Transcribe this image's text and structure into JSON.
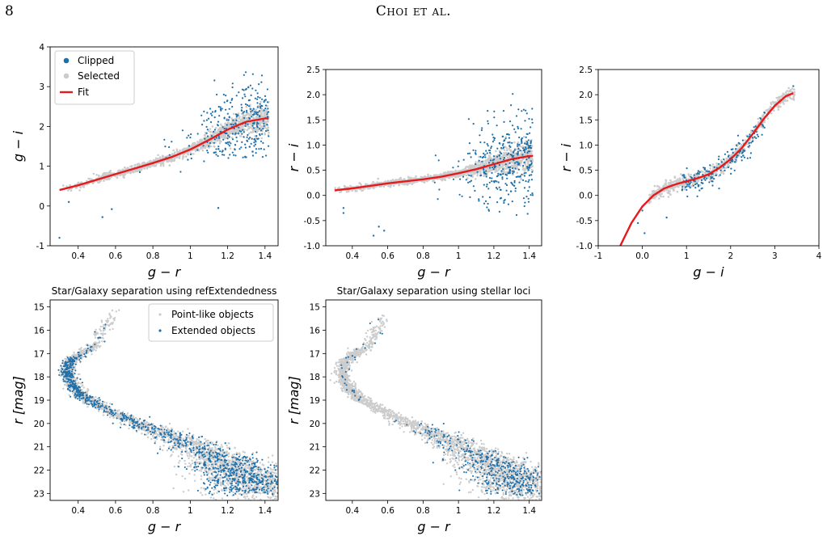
{
  "header": {
    "page_number": "8",
    "running_head": "Choi et al."
  },
  "colors": {
    "clipped": "#1f6fa8",
    "selected": "#cccccc",
    "fit": "#e41a1c"
  },
  "chart_data": [
    {
      "type": "scatter",
      "xlabel": "g − r",
      "ylabel": "g − i",
      "xlim": [
        0.25,
        1.47
      ],
      "ylim": [
        -1,
        4
      ],
      "xticks": [
        0.4,
        0.6,
        0.8,
        1.0,
        1.2,
        1.4
      ],
      "yticks": [
        -1,
        0,
        1,
        2,
        3,
        4
      ],
      "legend": {
        "placement": "top-left",
        "entries": [
          "Clipped",
          "Selected",
          "Fit"
        ]
      },
      "fit": {
        "x": [
          0.3,
          0.4,
          0.5,
          0.6,
          0.7,
          0.8,
          0.9,
          1.0,
          1.1,
          1.2,
          1.3,
          1.4,
          1.42
        ],
        "y": [
          0.4,
          0.52,
          0.66,
          0.8,
          0.94,
          1.08,
          1.23,
          1.42,
          1.66,
          1.92,
          2.12,
          2.2,
          2.2
        ]
      },
      "clipped_region": {
        "x_range": [
          1.05,
          1.42
        ],
        "y_range": [
          1.2,
          3.4
        ]
      },
      "outliers": [
        [
          0.3,
          -0.8
        ],
        [
          0.35,
          0.1
        ],
        [
          0.53,
          -0.28
        ],
        [
          0.58,
          -0.08
        ],
        [
          0.73,
          0.85
        ],
        [
          1.15,
          -0.05
        ]
      ]
    },
    {
      "type": "scatter",
      "xlabel": "g − r",
      "ylabel": "r − i",
      "xlim": [
        0.25,
        1.47
      ],
      "ylim": [
        -1.0,
        2.5
      ],
      "xticks": [
        0.4,
        0.6,
        0.8,
        1.0,
        1.2,
        1.4
      ],
      "yticks": [
        -1.0,
        -0.5,
        0.0,
        0.5,
        1.0,
        1.5,
        2.0,
        2.5
      ],
      "fit": {
        "x": [
          0.3,
          0.4,
          0.5,
          0.6,
          0.7,
          0.8,
          0.9,
          1.0,
          1.1,
          1.2,
          1.3,
          1.4,
          1.42
        ],
        "y": [
          0.1,
          0.14,
          0.19,
          0.24,
          0.28,
          0.32,
          0.37,
          0.44,
          0.52,
          0.62,
          0.72,
          0.78,
          0.78
        ]
      },
      "clipped_region": {
        "x_range": [
          1.05,
          1.42
        ],
        "y_range": [
          -0.45,
          2.15
        ]
      },
      "outliers": [
        [
          0.35,
          -0.25
        ],
        [
          0.35,
          -0.35
        ],
        [
          0.52,
          -0.8
        ],
        [
          0.55,
          -0.62
        ],
        [
          0.58,
          -0.7
        ]
      ]
    },
    {
      "type": "scatter",
      "xlabel": "g − i",
      "ylabel": "r − i",
      "xlim": [
        -1,
        4
      ],
      "ylim": [
        -1.0,
        2.5
      ],
      "xticks": [
        -1,
        0,
        1,
        2,
        3,
        4
      ],
      "yticks": [
        -1.0,
        -0.5,
        0.0,
        0.5,
        1.0,
        1.5,
        2.0,
        2.5
      ],
      "fit": {
        "x": [
          -0.5,
          -0.25,
          0.0,
          0.25,
          0.5,
          0.75,
          1.0,
          1.25,
          1.5,
          1.75,
          2.0,
          2.25,
          2.5,
          2.75,
          3.0,
          3.25,
          3.42
        ],
        "y": [
          -1.0,
          -0.55,
          -0.22,
          0.0,
          0.14,
          0.22,
          0.28,
          0.34,
          0.42,
          0.55,
          0.72,
          0.94,
          1.22,
          1.52,
          1.78,
          1.97,
          2.03
        ]
      }
    },
    {
      "type": "scatter",
      "title": "Star/Galaxy separation using refExtendedness",
      "xlabel": "g − r",
      "ylabel": "r [mag]",
      "xlim": [
        0.25,
        1.47
      ],
      "ylim": [
        23.3,
        14.7
      ],
      "xticks": [
        0.4,
        0.6,
        0.8,
        1.0,
        1.2,
        1.4
      ],
      "yticks": [
        15,
        16,
        17,
        18,
        19,
        20,
        21,
        22,
        23
      ],
      "legend": {
        "placement": "top-right",
        "entries": [
          "Point-like objects",
          "Extended objects"
        ]
      },
      "locus": {
        "x": [
          0.6,
          0.55,
          0.5,
          0.42,
          0.36,
          0.34,
          0.36,
          0.42,
          0.55,
          0.75,
          0.95,
          1.1,
          1.2,
          1.28,
          1.35,
          1.4
        ],
        "y": [
          15.1,
          15.8,
          16.6,
          17.0,
          17.3,
          17.8,
          18.3,
          18.8,
          19.4,
          20.1,
          20.7,
          21.3,
          21.8,
          22.2,
          22.6,
          22.9
        ]
      },
      "extended_density": "high"
    },
    {
      "type": "scatter",
      "title": "Star/Galaxy separation using stellar loci",
      "xlabel": "g − r",
      "ylabel": "r [mag]",
      "xlim": [
        0.25,
        1.47
      ],
      "ylim": [
        23.3,
        14.7
      ],
      "xticks": [
        0.4,
        0.6,
        0.8,
        1.0,
        1.2,
        1.4
      ],
      "yticks": [
        15,
        16,
        17,
        18,
        19,
        20,
        21,
        22,
        23
      ],
      "locus": {
        "x": [
          0.6,
          0.55,
          0.5,
          0.42,
          0.36,
          0.34,
          0.36,
          0.42,
          0.55,
          0.75,
          0.95,
          1.1,
          1.2,
          1.28,
          1.35,
          1.4
        ],
        "y": [
          15.1,
          15.8,
          16.6,
          17.0,
          17.3,
          17.8,
          18.3,
          18.8,
          19.4,
          20.1,
          20.7,
          21.3,
          21.8,
          22.2,
          22.6,
          22.9
        ]
      },
      "extended_density": "low"
    }
  ]
}
